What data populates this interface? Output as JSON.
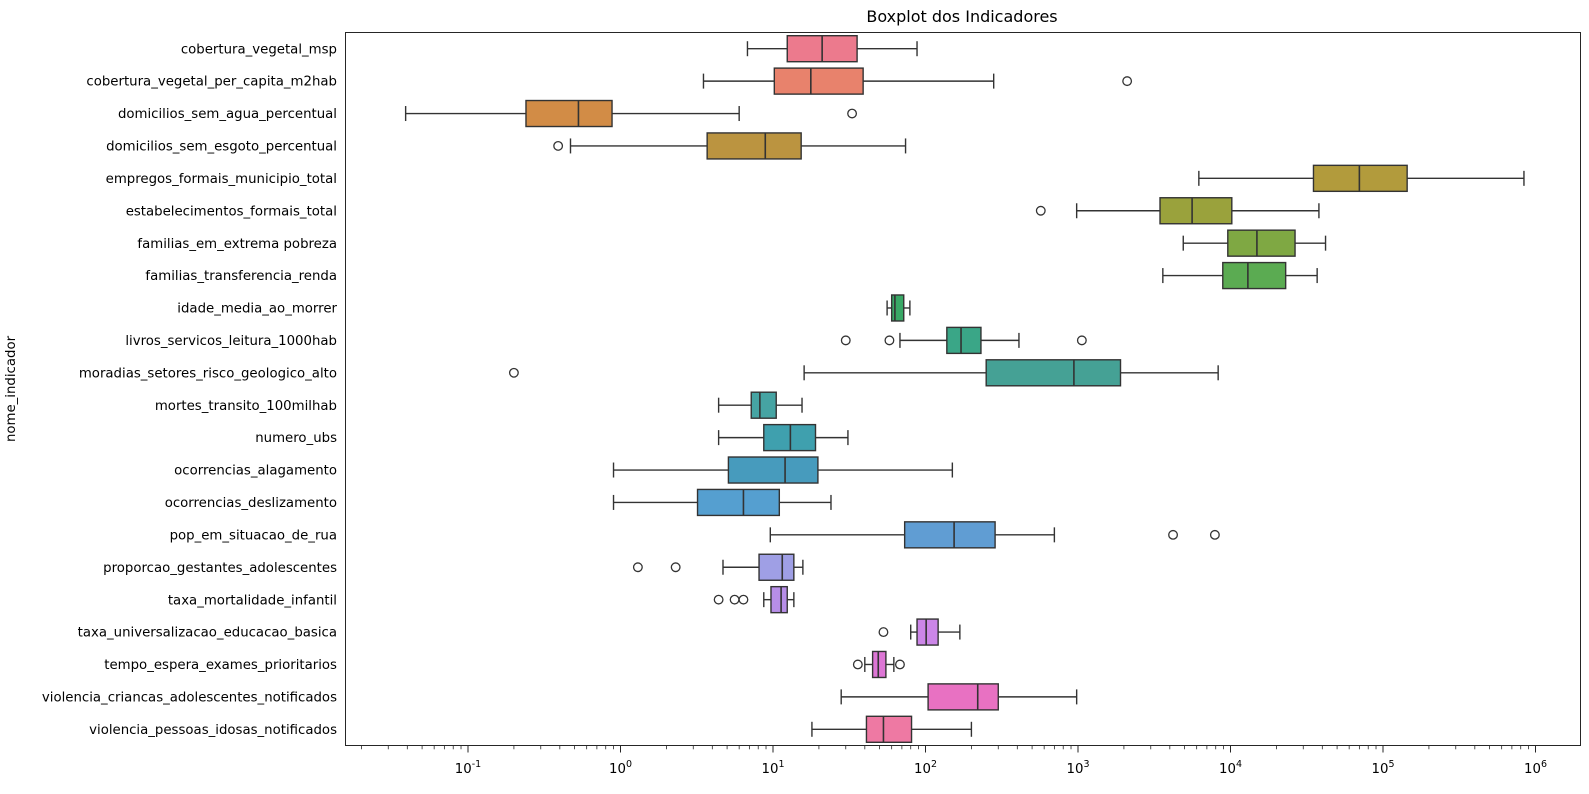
{
  "title": "Boxplot dos Indicadores",
  "ylabel": "nome_indicador",
  "chart_data": {
    "type": "boxplot-horizontal",
    "x_scale": "log10",
    "xlim": [
      0.0155,
      1950000
    ],
    "x_tick_exponents": [
      -1,
      0,
      1,
      2,
      3,
      4,
      5,
      6
    ],
    "grid": "off",
    "edge_color": "#333333",
    "background": "#ffffff",
    "categories": [
      "cobertura_vegetal_msp",
      "cobertura_vegetal_per_capita_m2hab",
      "domicilios_sem_agua_percentual",
      "domicilios_sem_esgoto_percentual",
      "empregos_formais_municipio_total",
      "estabelecimentos_formais_total",
      "familias_em_extrema pobreza",
      "familias_transferencia_renda",
      "idade_media_ao_morrer",
      "livros_servicos_leitura_1000hab",
      "moradias_setores_risco_geologico_alto",
      "mortes_transito_100milhab",
      "numero_ubs",
      "ocorrencias_alagamento",
      "ocorrencias_deslizamento",
      "pop_em_situacao_de_rua",
      "proporcao_gestantes_adolescentes",
      "taxa_mortalidade_infantil",
      "taxa_universalizacao_educacao_basica",
      "tempo_espera_exames_prioritarios",
      "violencia_criancas_adolescentes_notificados",
      "violencia_pessoas_idosas_notificados"
    ],
    "series": [
      {
        "name": "cobertura_vegetal_msp",
        "color": "#ec7a8d",
        "whisker_low": 6.8,
        "q1": 12.4,
        "median": 21,
        "q3": 35.6,
        "whisker_high": 88,
        "outliers": []
      },
      {
        "name": "cobertura_vegetal_per_capita_m2hab",
        "color": "#e8826c",
        "whisker_low": 3.5,
        "q1": 10.2,
        "median": 17.7,
        "q3": 39,
        "whisker_high": 280,
        "outliers": [
          2100
        ]
      },
      {
        "name": "domicilios_sem_agua_percentual",
        "color": "#d28c46",
        "whisker_low": 0.039,
        "q1": 0.24,
        "median": 0.53,
        "q3": 0.88,
        "whisker_high": 6.0,
        "outliers": [
          33
        ]
      },
      {
        "name": "domicilios_sem_esgoto_percentual",
        "color": "#bb9440",
        "whisker_low": 0.47,
        "q1": 3.7,
        "median": 8.9,
        "q3": 15.3,
        "whisker_high": 74,
        "outliers": [
          0.39
        ]
      },
      {
        "name": "empregos_formais_municipio_total",
        "color": "#b29b3c",
        "whisker_low": 6200,
        "q1": 35000,
        "median": 70000,
        "q3": 144000,
        "whisker_high": 840000,
        "outliers": []
      },
      {
        "name": "estabelecimentos_formais_total",
        "color": "#9aa23c",
        "whisker_low": 980,
        "q1": 3450,
        "median": 5600,
        "q3": 10200,
        "whisker_high": 38000,
        "outliers": [
          570
        ]
      },
      {
        "name": "familias_em_extrema pobreza",
        "color": "#7fa843",
        "whisker_low": 4900,
        "q1": 9600,
        "median": 14900,
        "q3": 26500,
        "whisker_high": 42000,
        "outliers": []
      },
      {
        "name": "familias_transferencia_renda",
        "color": "#5bab52",
        "whisker_low": 3600,
        "q1": 8900,
        "median": 13000,
        "q3": 23000,
        "whisker_high": 37000,
        "outliers": []
      },
      {
        "name": "idade_media_ao_morrer",
        "color": "#39a866",
        "whisker_low": 56,
        "q1": 60,
        "median": 63,
        "q3": 72,
        "whisker_high": 79,
        "outliers": []
      },
      {
        "name": "livros_servicos_leitura_1000hab",
        "color": "#3aa687",
        "whisker_low": 68,
        "q1": 138,
        "median": 171,
        "q3": 231,
        "whisker_high": 410,
        "outliers": [
          30,
          58,
          1060
        ]
      },
      {
        "name": "moradias_setores_risco_geologico_alto",
        "color": "#45a195",
        "whisker_low": 16,
        "q1": 250,
        "median": 940,
        "q3": 1900,
        "whisker_high": 8300,
        "outliers": [
          0.2
        ]
      },
      {
        "name": "mortes_transito_100milhab",
        "color": "#46a4a3",
        "whisker_low": 4.4,
        "q1": 7.2,
        "median": 8.2,
        "q3": 10.5,
        "whisker_high": 15.5,
        "outliers": []
      },
      {
        "name": "numero_ubs",
        "color": "#3fa0ae",
        "whisker_low": 4.4,
        "q1": 8.7,
        "median": 13,
        "q3": 19,
        "whisker_high": 31,
        "outliers": []
      },
      {
        "name": "ocorrencias_alagamento",
        "color": "#479bbd",
        "whisker_low": 0.9,
        "q1": 5.1,
        "median": 12,
        "q3": 19.7,
        "whisker_high": 150,
        "outliers": []
      },
      {
        "name": "ocorrencias_deslizamento",
        "color": "#559fd0",
        "whisker_low": 0.9,
        "q1": 3.2,
        "median": 6.4,
        "q3": 11,
        "whisker_high": 24,
        "outliers": []
      },
      {
        "name": "pop_em_situacao_de_rua",
        "color": "#609dd3",
        "whisker_low": 9.6,
        "q1": 73,
        "median": 154,
        "q3": 286,
        "whisker_high": 700,
        "outliers": [
          4200,
          7900
        ]
      },
      {
        "name": "proporcao_gestantes_adolescentes",
        "color": "#9f9fe5",
        "whisker_low": 4.7,
        "q1": 8.1,
        "median": 11.5,
        "q3": 13.7,
        "whisker_high": 15.7,
        "outliers": [
          1.3,
          2.3
        ]
      },
      {
        "name": "taxa_mortalidade_infantil",
        "color": "#b78ee8",
        "whisker_low": 8.7,
        "q1": 9.7,
        "median": 11.3,
        "q3": 12.4,
        "whisker_high": 13.7,
        "outliers": [
          4.4,
          5.6,
          6.4
        ]
      },
      {
        "name": "taxa_universalizacao_educacao_basica",
        "color": "#cc86e8",
        "whisker_low": 80,
        "q1": 88,
        "median": 101,
        "q3": 121,
        "whisker_high": 168,
        "outliers": [
          53
        ]
      },
      {
        "name": "tempo_espera_exames_prioritarios",
        "color": "#dd76d5",
        "whisker_low": 40,
        "q1": 45,
        "median": 49,
        "q3": 55,
        "whisker_high": 62,
        "outliers": [
          36,
          68
        ]
      },
      {
        "name": "violencia_criancas_adolescentes_notificados",
        "color": "#e871c2",
        "whisker_low": 28,
        "q1": 104,
        "median": 220,
        "q3": 300,
        "whisker_high": 980,
        "outliers": []
      },
      {
        "name": "violencia_pessoas_idosas_notificados",
        "color": "#ee79a3",
        "whisker_low": 18,
        "q1": 41,
        "median": 53,
        "q3": 81,
        "whisker_high": 200,
        "outliers": []
      }
    ]
  }
}
